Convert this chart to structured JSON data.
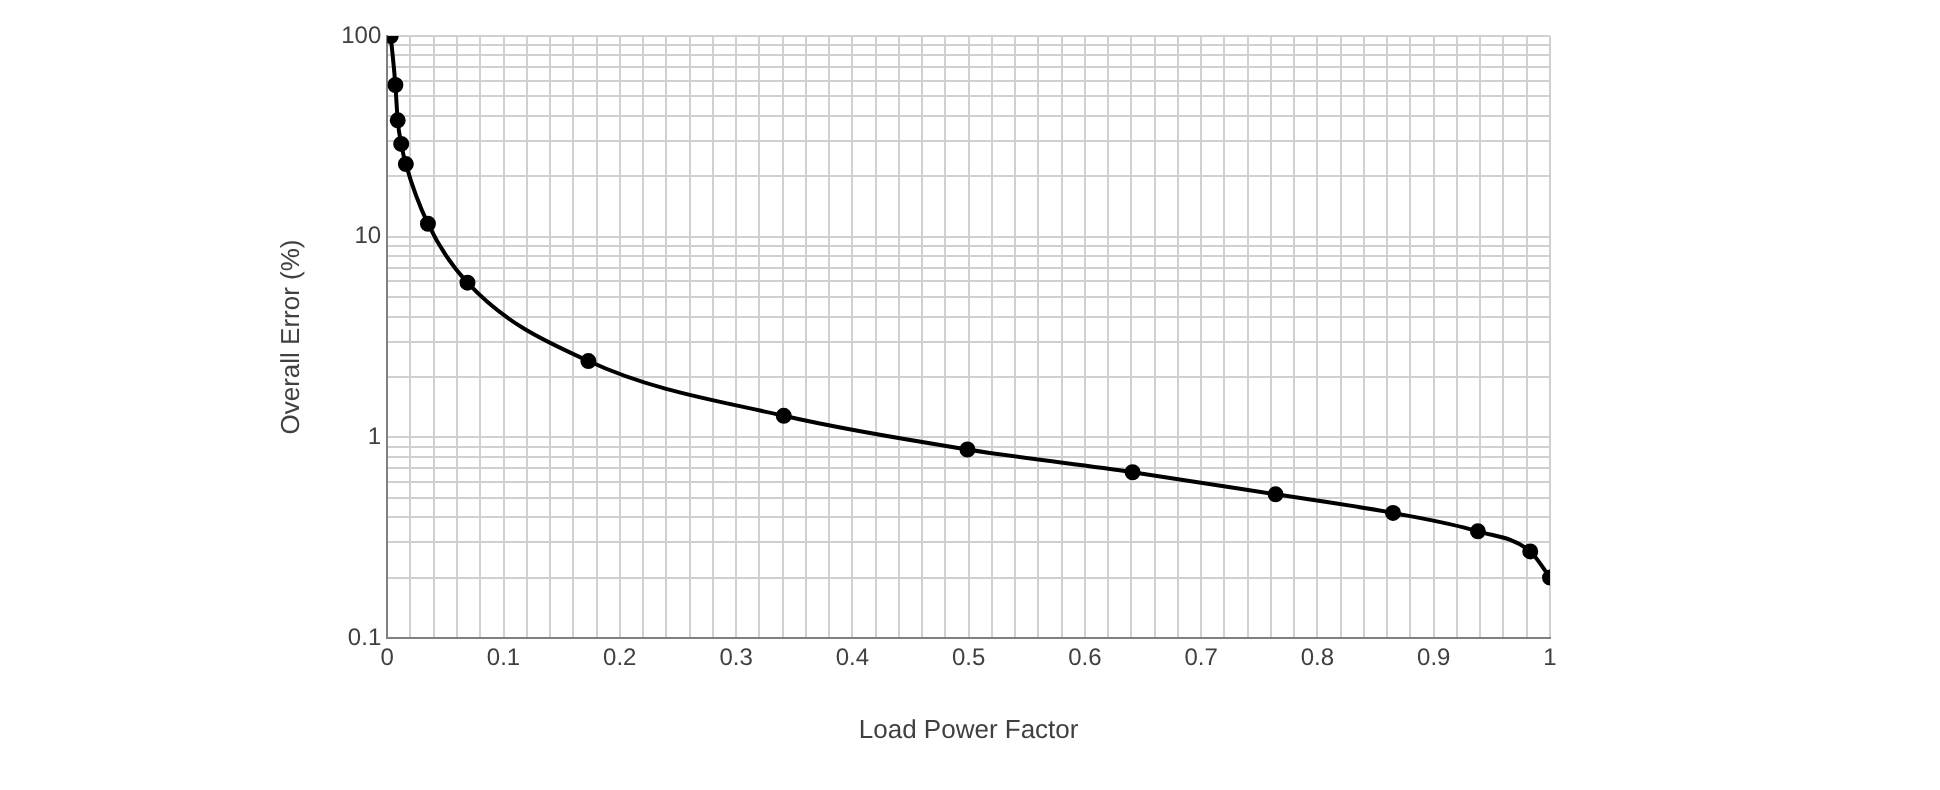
{
  "chart_data": {
    "type": "line",
    "xlabel": "Load Power Factor",
    "ylabel": "Overall Error (%)",
    "x": [
      0.003,
      0.007,
      0.009,
      0.012,
      0.016,
      0.035,
      0.069,
      0.173,
      0.341,
      0.499,
      0.641,
      0.764,
      0.865,
      0.938,
      0.983,
      1.0
    ],
    "series": [
      {
        "color": "#000000",
        "values": [
          100,
          57,
          38,
          29,
          23,
          11.6,
          5.9,
          2.4,
          1.28,
          0.87,
          0.67,
          0.52,
          0.42,
          0.34,
          0.27,
          0.2
        ]
      }
    ],
    "xlim": [
      0,
      1
    ],
    "xticks": [
      0,
      {
        "value": 0.02,
        "label": null
      },
      {
        "value": 0.04,
        "label": null
      },
      {
        "value": 0.06,
        "label": null
      },
      {
        "value": 0.08,
        "label": null
      },
      0.1,
      {
        "value": 0.12,
        "label": null
      },
      {
        "value": 0.14,
        "label": null
      },
      {
        "value": 0.16,
        "label": null
      },
      {
        "value": 0.18,
        "label": null
      },
      0.2,
      {
        "value": 0.22,
        "label": null
      },
      {
        "value": 0.24,
        "label": null
      },
      {
        "value": 0.26,
        "label": null
      },
      {
        "value": 0.28,
        "label": null
      },
      0.3,
      {
        "value": 0.32,
        "label": null
      },
      {
        "value": 0.34,
        "label": null
      },
      {
        "value": 0.36,
        "label": null
      },
      {
        "value": 0.38,
        "label": null
      },
      0.4,
      {
        "value": 0.42,
        "label": null
      },
      {
        "value": 0.44,
        "label": null
      },
      {
        "value": 0.46,
        "label": null
      },
      {
        "value": 0.48,
        "label": null
      },
      0.5,
      {
        "value": 0.52,
        "label": null
      },
      {
        "value": 0.54,
        "label": null
      },
      {
        "value": 0.56,
        "label": null
      },
      {
        "value": 0.58,
        "label": null
      },
      0.6,
      {
        "value": 0.62,
        "label": null
      },
      {
        "value": 0.64,
        "label": null
      },
      {
        "value": 0.66,
        "label": null
      },
      {
        "value": 0.68,
        "label": null
      },
      0.7,
      {
        "value": 0.72,
        "label": null
      },
      {
        "value": 0.74,
        "label": null
      },
      {
        "value": 0.76,
        "label": null
      },
      {
        "value": 0.78,
        "label": null
      },
      0.8,
      {
        "value": 0.82,
        "label": null
      },
      {
        "value": 0.84,
        "label": null
      },
      {
        "value": 0.86,
        "label": null
      },
      {
        "value": 0.88,
        "label": null
      },
      0.9,
      {
        "value": 0.92,
        "label": null
      },
      {
        "value": 0.94,
        "label": null
      },
      {
        "value": 0.96,
        "label": null
      },
      {
        "value": 0.98,
        "label": null
      },
      1
    ],
    "ylim": [
      0.1,
      100
    ],
    "yticks": [
      0.1,
      {
        "value": 0.2,
        "label": null
      },
      {
        "value": 0.3,
        "label": null
      },
      {
        "value": 0.4,
        "label": null
      },
      {
        "value": 0.5,
        "label": null
      },
      {
        "value": 0.6,
        "label": null
      },
      {
        "value": 0.7,
        "label": null
      },
      {
        "value": 0.8,
        "label": null
      },
      {
        "value": 0.9,
        "label": null
      },
      1,
      {
        "value": 2,
        "label": null
      },
      {
        "value": 3,
        "label": null
      },
      {
        "value": 4,
        "label": null
      },
      {
        "value": 5,
        "label": null
      },
      {
        "value": 6,
        "label": null
      },
      {
        "value": 7,
        "label": null
      },
      {
        "value": 8,
        "label": null
      },
      {
        "value": 9,
        "label": null
      },
      10,
      {
        "value": 20,
        "label": null
      },
      {
        "value": 30,
        "label": null
      },
      {
        "value": 40,
        "label": null
      },
      {
        "value": 50,
        "label": null
      },
      {
        "value": 60,
        "label": null
      },
      {
        "value": 70,
        "label": null
      },
      {
        "value": 80,
        "label": null
      },
      {
        "value": 90,
        "label": null
      },
      100
    ],
    "log": "y",
    "grid": true,
    "legend": false,
    "marker": "circle",
    "line_style": "solid"
  }
}
